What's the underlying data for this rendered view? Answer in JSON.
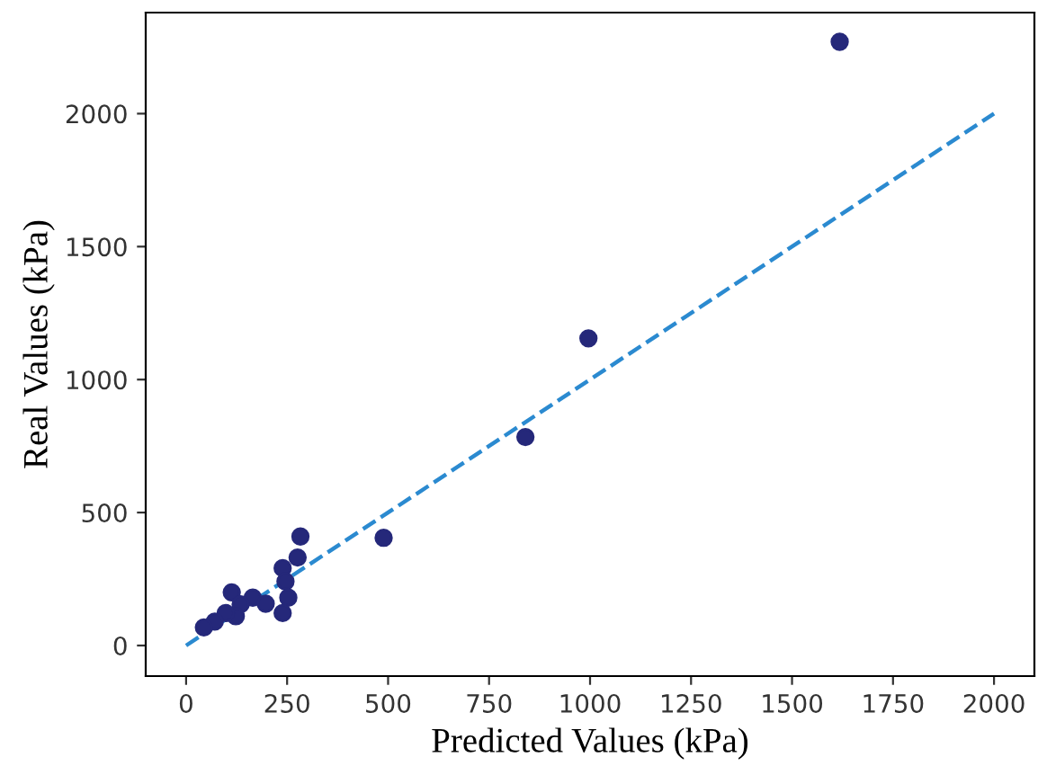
{
  "chart_data": {
    "type": "scatter",
    "xlabel": "Predicted Values (kPa)",
    "ylabel": "Real Values (kPa)",
    "xlim": [
      -100,
      2100
    ],
    "ylim": [
      -115,
      2380
    ],
    "xticks": [
      0,
      250,
      500,
      750,
      1000,
      1250,
      1500,
      1750,
      2000
    ],
    "yticks": [
      0,
      500,
      1000,
      1500,
      2000
    ],
    "grid": false,
    "series": [
      {
        "color": "#25287a",
        "marker": "circle",
        "x": [
          1618,
          996,
          840,
          489,
          283,
          276,
          239,
          246,
          253,
          239,
          113,
          165,
          197,
          135,
          123,
          98,
          71,
          44
        ],
        "values": [
          2270,
          1155,
          784,
          405,
          410,
          331,
          291,
          241,
          180,
          122,
          200,
          180,
          157,
          155,
          110,
          122,
          90,
          68
        ]
      },
      {
        "type": "line",
        "color": "#2b8ad0",
        "line_style": "dashed",
        "marker": "none",
        "x": [
          0,
          2000
        ],
        "values": [
          0,
          2000
        ]
      }
    ]
  }
}
